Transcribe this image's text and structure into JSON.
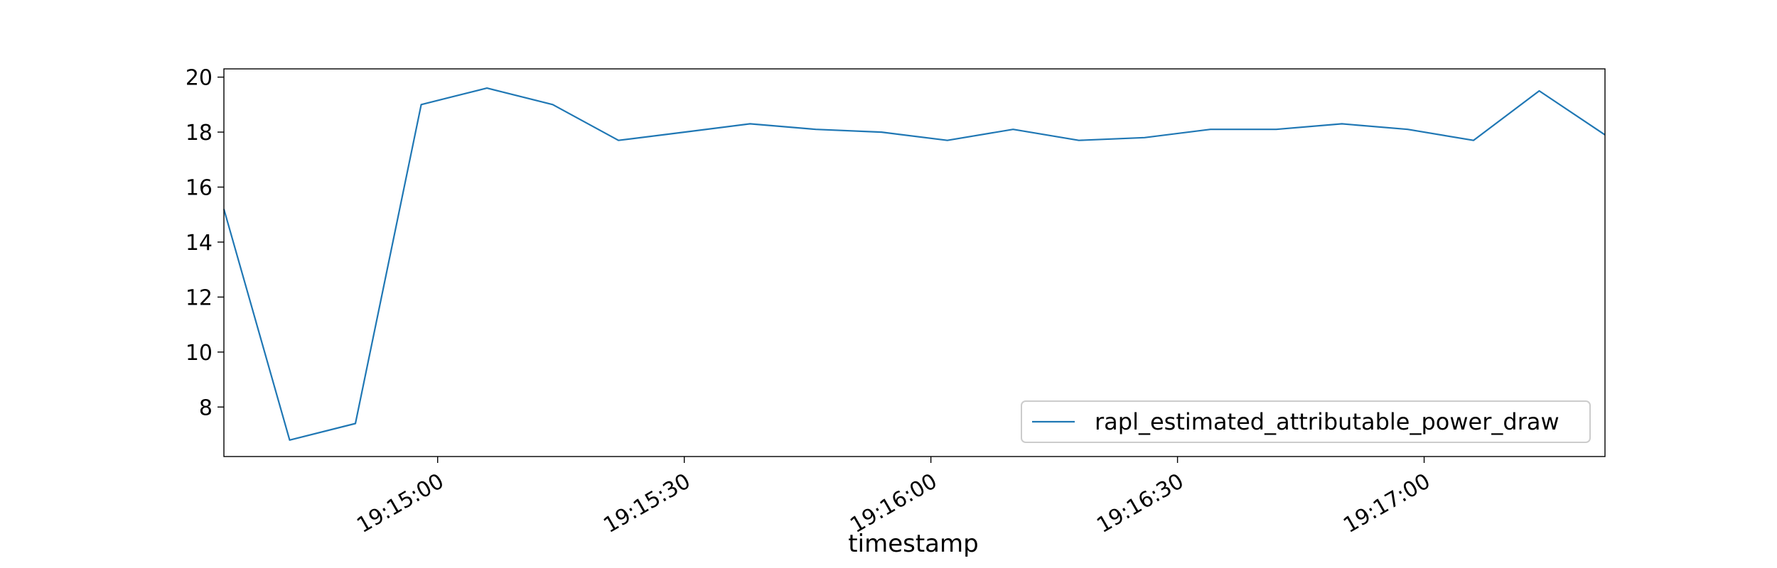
{
  "chart_data": {
    "type": "line",
    "xlabel": "timestamp",
    "ylabel": "",
    "x": [
      "19:14:34",
      "19:14:42",
      "19:14:50",
      "19:14:58",
      "19:15:06",
      "19:15:14",
      "19:15:22",
      "19:15:30",
      "19:15:38",
      "19:15:46",
      "19:15:54",
      "19:16:02",
      "19:16:10",
      "19:16:18",
      "19:16:26",
      "19:16:34",
      "19:16:42",
      "19:16:50",
      "19:16:58",
      "19:17:06",
      "19:17:14",
      "19:17:22"
    ],
    "series": [
      {
        "name": "rapl_estimated_attributable_power_draw",
        "color": "#1f77b4",
        "values": [
          15.2,
          6.8,
          7.4,
          19.0,
          19.6,
          19.0,
          17.7,
          18.0,
          18.3,
          18.1,
          18.0,
          17.7,
          18.1,
          17.7,
          17.8,
          18.1,
          18.1,
          18.3,
          18.1,
          17.7,
          19.5,
          17.9
        ]
      }
    ],
    "xlim": [
      "19:14:34",
      "19:17:22"
    ],
    "ylim": [
      6.2,
      20.3
    ],
    "x_ticks": [
      "19:15:00",
      "19:15:30",
      "19:16:00",
      "19:16:30",
      "19:17:00"
    ],
    "y_ticks": [
      8,
      10,
      12,
      14,
      16,
      18,
      20
    ],
    "grid": false,
    "legend_position": "lower-right"
  }
}
